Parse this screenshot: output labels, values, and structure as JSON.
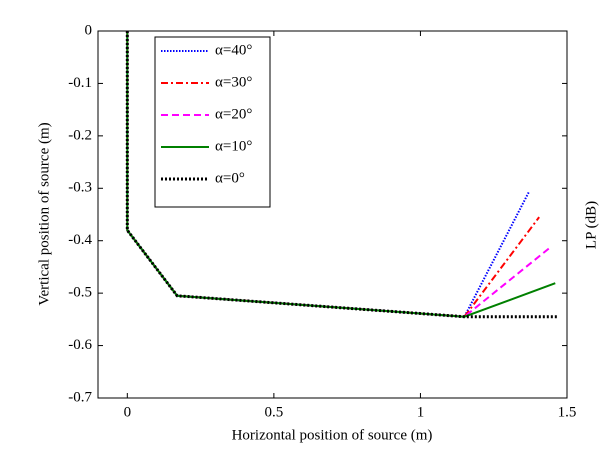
{
  "chart_data": {
    "type": "line",
    "xlabel": "Horizontal position of source (m)",
    "ylabel": "Vertical position of source (m)",
    "y2label": "LP (dB)",
    "xlim": [
      -0.1,
      1.5
    ],
    "xticks": [
      0,
      0.5,
      1,
      1.5
    ],
    "ylim": [
      -0.7,
      0
    ],
    "yticks": [
      0,
      -0.1,
      -0.2,
      -0.3,
      -0.4,
      -0.5,
      -0.6,
      -0.7
    ],
    "legend": "upper left",
    "series": [
      {
        "name": "α=40°",
        "color": "#0000ff",
        "style": "dotted",
        "x": [
          0,
          0,
          0.17,
          1.15,
          1.37
        ],
        "values": [
          0,
          -0.38,
          -0.505,
          -0.545,
          -0.307
        ]
      },
      {
        "name": "α=30°",
        "color": "#ff0000",
        "style": "dashdot",
        "x": [
          0,
          0,
          0.17,
          1.15,
          1.405
        ],
        "values": [
          0,
          -0.38,
          -0.505,
          -0.545,
          -0.355
        ]
      },
      {
        "name": "α=20°",
        "color": "#ff00ff",
        "style": "dashed",
        "x": [
          0,
          0,
          0.17,
          1.15,
          1.44
        ],
        "values": [
          0,
          -0.38,
          -0.505,
          -0.545,
          -0.414
        ]
      },
      {
        "name": "α=10°",
        "color": "#008000",
        "style": "solid",
        "x": [
          0,
          0,
          0.17,
          1.15,
          1.46
        ],
        "values": [
          0,
          -0.38,
          -0.505,
          -0.545,
          -0.481
        ]
      },
      {
        "name": "α=0°",
        "color": "#000000",
        "style": "dottedthick",
        "x": [
          0,
          0,
          0.17,
          1.15,
          1.47
        ],
        "values": [
          0,
          -0.38,
          -0.505,
          -0.545,
          -0.545
        ]
      }
    ]
  }
}
